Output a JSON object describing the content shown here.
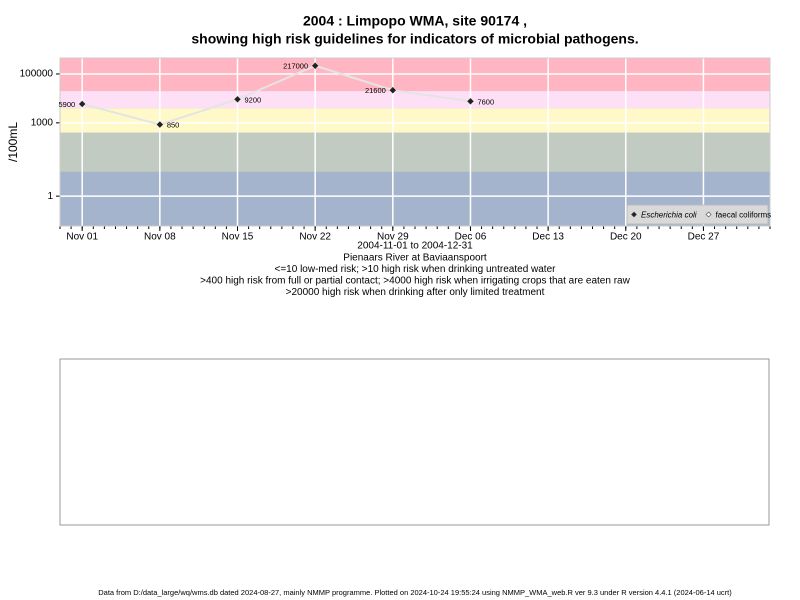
{
  "chart_data": {
    "type": "line",
    "title": "2004 : Limpopo WMA, site 90174 ,",
    "subtitle": "showing high risk guidelines for indicators of microbial pathogens.",
    "y_label": "/100mL",
    "x_label": "2004-11-01 to 2004-12-31",
    "notes": [
      "Pienaars River at Baviaanspoort",
      "<=10 low-med risk; >10 high risk when drinking untreated water",
      ">400 high risk from full or partial contact; >4000 high risk when irrigating crops that are eaten raw",
      ">20000 high risk when drinking after only limited treatment"
    ],
    "footer": "Data from D:/data_large/wq/wms.db dated 2024-08-27, mainly NMMP programme. Plotted on 2024-10-24 19:55:24 using NMMP_WMA_web.R ver 9.3 under R version 4.4.1 (2024-06-14 ucrt)",
    "x": [
      "2004-11-01",
      "2004-11-08",
      "2004-11-15",
      "2004-11-22",
      "2004-11-29",
      "2004-12-06"
    ],
    "series": [
      {
        "name": "Escherichia coli",
        "color": "#222222",
        "line_color": "#e4e4e4",
        "values": [
          5900,
          850,
          9200,
          217000,
          21600,
          7600
        ]
      },
      {
        "name": "faecal coliforms",
        "color": "#ffffff",
        "values": [
          null,
          null,
          null,
          null,
          null,
          null
        ]
      }
    ],
    "xlim": [
      "2004-10-30",
      "2005-01-02"
    ],
    "xticks": [
      {
        "value": "2004-11-01",
        "label": "Nov 01"
      },
      {
        "value": "2004-11-08",
        "label": "Nov 08"
      },
      {
        "value": "2004-11-15",
        "label": "Nov 15"
      },
      {
        "value": "2004-11-22",
        "label": "Nov 22"
      },
      {
        "value": "2004-11-29",
        "label": "Nov 29"
      },
      {
        "value": "2004-12-06",
        "label": "Dec 06"
      },
      {
        "value": "2004-12-13",
        "label": "Dec 13"
      },
      {
        "value": "2004-12-20",
        "label": "Dec 20"
      },
      {
        "value": "2004-12-27",
        "label": "Dec 27"
      }
    ],
    "ylim": [
      0.06,
      450000
    ],
    "yticks": [
      1,
      1000,
      100000
    ],
    "log_y": true,
    "grid": true,
    "plot_background": "#a4b4cc",
    "bands": [
      {
        "min": 10,
        "color": "#c2cbc1"
      },
      {
        "min": 400,
        "color": "#fff8c8"
      },
      {
        "min": 4000,
        "color": "#fde0f5"
      },
      {
        "min": 20000,
        "color": "#ffb5c2"
      }
    ],
    "legend": "bottom right"
  }
}
